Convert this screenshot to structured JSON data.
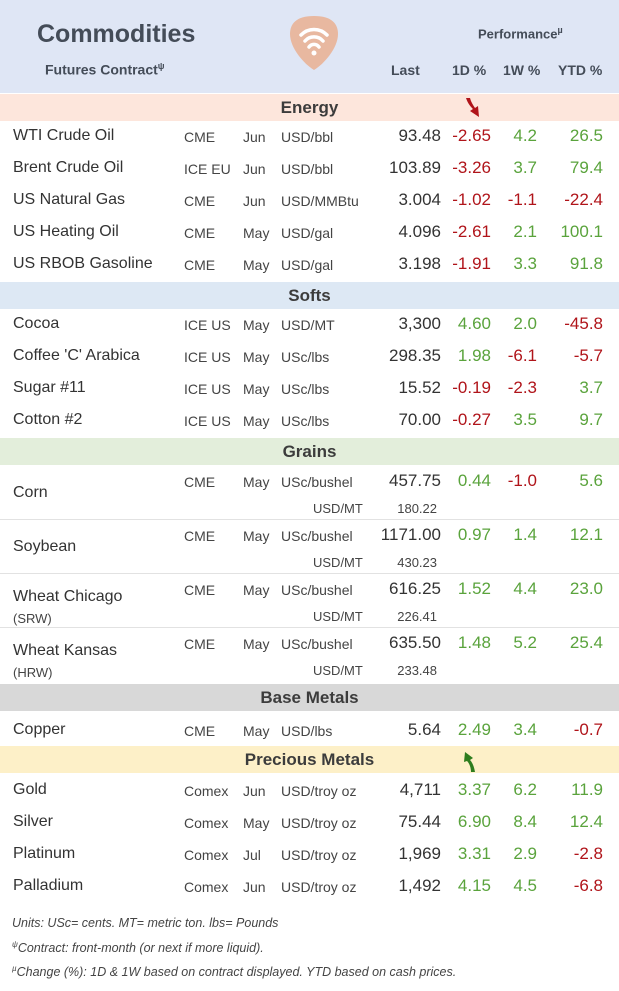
{
  "header": {
    "title": "Commodities",
    "subtitle": "Futures Contract",
    "subtitle_mark": "ψ",
    "performance": "Performance",
    "performance_mark": "µ",
    "col_last": "Last",
    "col_1d": "1D %",
    "col_1w": "1W %",
    "col_ytd": "YTD %",
    "logo_icon": "guitar-pick-wifi-logo",
    "logo_color": "#e8b8a0"
  },
  "sections": {
    "energy": {
      "label": "Energy",
      "color": "#fde6dc"
    },
    "softs": {
      "label": "Softs",
      "color": "#dde8f4"
    },
    "grains": {
      "label": "Grains",
      "color": "#e3eedb"
    },
    "base_metals": {
      "label": "Base Metals",
      "color": "#d8d8d8"
    },
    "precious_metals": {
      "label": "Precious Metals",
      "color": "#fdf0c8"
    }
  },
  "energy": [
    {
      "name": "WTI Crude Oil",
      "exch": "CME",
      "month": "Jun",
      "unit": "USD/bbl",
      "last": "93.48",
      "d1": "-2.65",
      "w1": "4.2",
      "ytd": "26.5"
    },
    {
      "name": "Brent Crude Oil",
      "exch": "ICE EU",
      "month": "Jun",
      "unit": "USD/bbl",
      "last": "103.89",
      "d1": "-3.26",
      "w1": "3.7",
      "ytd": "79.4"
    },
    {
      "name": "US Natural Gas",
      "exch": "CME",
      "month": "Jun",
      "unit": "USD/MMBtu",
      "last": "3.004",
      "d1": "-1.02",
      "w1": "-1.1",
      "ytd": "-22.4"
    },
    {
      "name": "US Heating Oil",
      "exch": "CME",
      "month": "May",
      "unit": "USD/gal",
      "last": "4.096",
      "d1": "-2.61",
      "w1": "2.1",
      "ytd": "100.1"
    },
    {
      "name": "US RBOB Gasoline",
      "exch": "CME",
      "month": "May",
      "unit": "USD/gal",
      "last": "3.198",
      "d1": "-1.91",
      "w1": "3.3",
      "ytd": "91.8"
    }
  ],
  "softs": [
    {
      "name": "Cocoa",
      "exch": "ICE US",
      "month": "May",
      "unit": "USD/MT",
      "last": "3,300",
      "d1": "4.60",
      "w1": "2.0",
      "ytd": "-45.8"
    },
    {
      "name": "Coffee 'C' Arabica",
      "exch": "ICE US",
      "month": "May",
      "unit": "USc/lbs",
      "last": "298.35",
      "d1": "1.98",
      "w1": "-6.1",
      "ytd": "-5.7"
    },
    {
      "name": "Sugar #11",
      "exch": "ICE US",
      "month": "May",
      "unit": "USc/lbs",
      "last": "15.52",
      "d1": "-0.19",
      "w1": "-2.3",
      "ytd": "3.7"
    },
    {
      "name": "Cotton #2",
      "exch": "ICE US",
      "month": "May",
      "unit": "USc/lbs",
      "last": "70.00",
      "d1": "-0.27",
      "w1": "3.5",
      "ytd": "9.7"
    }
  ],
  "grains": [
    {
      "name": "Corn",
      "sub": "",
      "exch": "CME",
      "month": "May",
      "unit": "USc/bushel",
      "last": "457.75",
      "d1": "0.44",
      "w1": "-1.0",
      "ytd": "5.6",
      "unit2": "USD/MT",
      "last2": "180.22"
    },
    {
      "name": "Soybean",
      "sub": "",
      "exch": "CME",
      "month": "May",
      "unit": "USc/bushel",
      "last": "1171.00",
      "d1": "0.97",
      "w1": "1.4",
      "ytd": "12.1",
      "unit2": "USD/MT",
      "last2": "430.23"
    },
    {
      "name": "Wheat Chicago",
      "sub": "(SRW)",
      "exch": "CME",
      "month": "May",
      "unit": "USc/bushel",
      "last": "616.25",
      "d1": "1.52",
      "w1": "4.4",
      "ytd": "23.0",
      "unit2": "USD/MT",
      "last2": "226.41"
    },
    {
      "name": "Wheat Kansas",
      "sub": "(HRW)",
      "exch": "CME",
      "month": "May",
      "unit": "USc/bushel",
      "last": "635.50",
      "d1": "1.48",
      "w1": "5.2",
      "ytd": "25.4",
      "unit2": "USD/MT",
      "last2": "233.48"
    }
  ],
  "base_metals": [
    {
      "name": "Copper",
      "exch": "CME",
      "month": "May",
      "unit": "USD/lbs",
      "last": "5.64",
      "d1": "2.49",
      "w1": "3.4",
      "ytd": "-0.7"
    }
  ],
  "precious_metals": [
    {
      "name": "Gold",
      "exch": "Comex",
      "month": "Jun",
      "unit": "USD/troy oz",
      "last": "4,711",
      "d1": "3.37",
      "w1": "6.2",
      "ytd": "11.9"
    },
    {
      "name": "Silver",
      "exch": "Comex",
      "month": "May",
      "unit": "USD/troy oz",
      "last": "75.44",
      "d1": "6.90",
      "w1": "8.4",
      "ytd": "12.4"
    },
    {
      "name": "Platinum",
      "exch": "Comex",
      "month": "Jul",
      "unit": "USD/troy oz",
      "last": "1,969",
      "d1": "3.31",
      "w1": "2.9",
      "ytd": "-2.8"
    },
    {
      "name": "Palladium",
      "exch": "Comex",
      "month": "Jun",
      "unit": "USD/troy oz",
      "last": "1,492",
      "d1": "4.15",
      "w1": "4.5",
      "ytd": "-6.8"
    }
  ],
  "indicators": {
    "energy_arrow": "down-arrow-icon",
    "energy_arrow_color": "#b0141a",
    "precious_arrow": "up-arrow-icon",
    "precious_arrow_color": "#2e7d1e"
  },
  "footnotes": {
    "units": "Units: USc= cents.  MT= metric ton.  lbs= Pounds",
    "contract_mark": "ψ",
    "contract": "Contract: front-month (or next if more liquid).",
    "change_mark": "µ",
    "change": "Change (%): 1D & 1W based on contract displayed. YTD based on cash prices."
  },
  "colors": {
    "positive": "#5aa33c",
    "negative": "#b0141a",
    "header_bg": "#dfe6f5"
  }
}
